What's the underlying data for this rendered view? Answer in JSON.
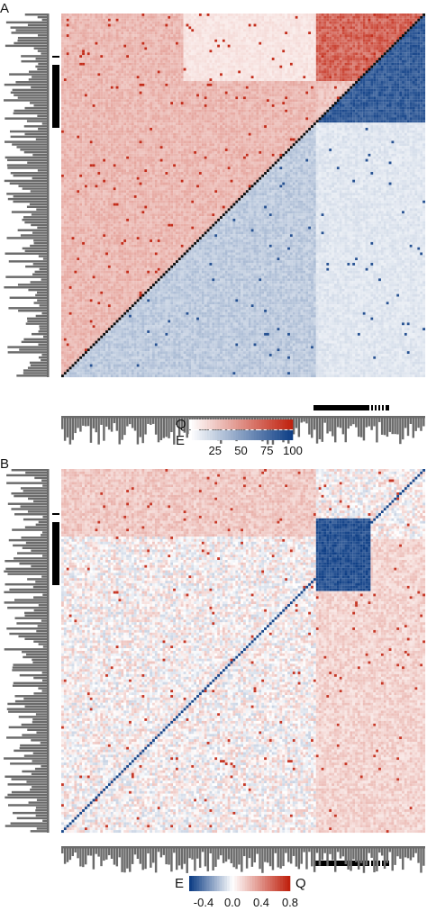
{
  "colors": {
    "q_red": "#c0220f",
    "e_blue": "#0f3f86",
    "white": "#ffffff",
    "bar_gray": "#6b6b6b",
    "track_black": "#000000"
  },
  "chart_data": [
    {
      "type": "heatmap",
      "panel_label": "A",
      "layout": "upper-left triangle Q (red), lower-right triangle E (blue), black diagonal",
      "n_rows": 140,
      "color_scale": {
        "upper_label": "Q",
        "lower_label": "E",
        "ticks": [
          "25",
          "50",
          "75",
          "100"
        ],
        "range": [
          0,
          100
        ],
        "upper_colormap": "white-to-red",
        "lower_colormap": "white-to-blue"
      },
      "block_boundary_fraction": 0.7,
      "diagonal_blocks": [
        {
          "start": 0.7,
          "end": 1.0,
          "label": "bottom-right block (dark blue in E)"
        },
        {
          "start": 0.0,
          "end": 0.19,
          "label": "top-left block"
        }
      ],
      "side_bars": "row/column marginal bar plots (gray)",
      "track_marks": "black annotation track on left and bottom edges"
    },
    {
      "type": "heatmap",
      "panel_label": "B",
      "layout": "diverging full matrix, blue diagonal",
      "n_rows": 140,
      "color_scale": {
        "left_label": "E",
        "right_label": "Q",
        "ticks": [
          "-0.4",
          "0.0",
          "0.4",
          "0.8"
        ],
        "range": [
          -0.6,
          0.8
        ],
        "colormap": "blue-white-red"
      },
      "dense_blue_block": {
        "start": 0.7,
        "end": 0.85
      },
      "side_bars": "row/column marginal bar plots (gray)",
      "track_marks": "black annotation track on left and bottom edges"
    }
  ]
}
